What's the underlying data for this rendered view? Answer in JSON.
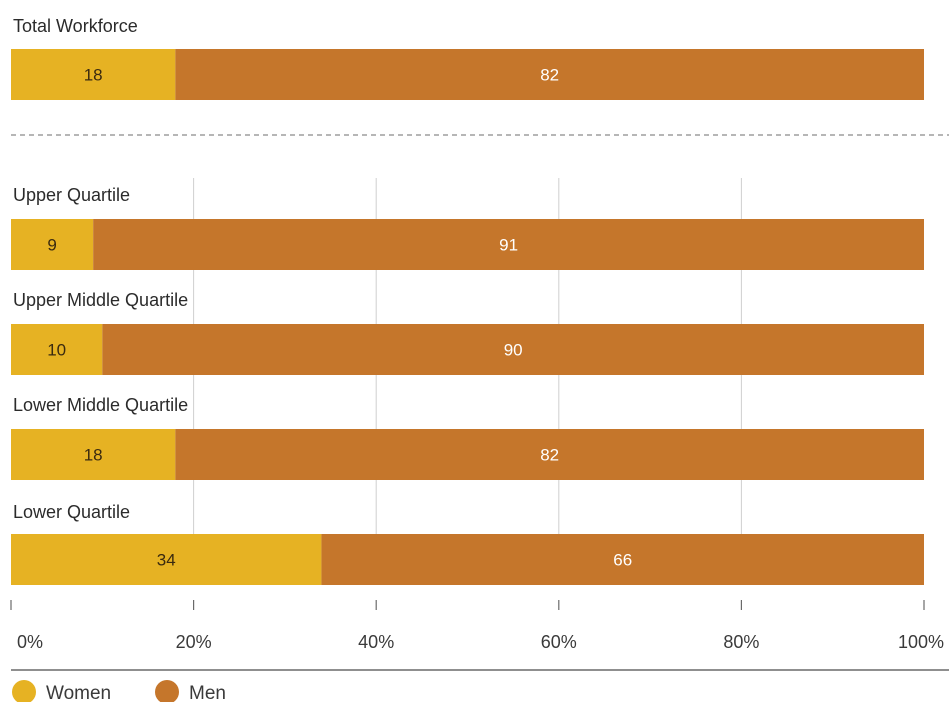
{
  "colors": {
    "women": "#e6b223",
    "men": "#c5762b",
    "grid": "#cfcfcf",
    "divider": "#8a8a8a",
    "axis": "#6a6a6a",
    "women_text": "#3a2a10",
    "men_text": "#ffffff"
  },
  "chart_data": {
    "type": "bar",
    "orientation": "horizontal",
    "stacked": true,
    "categories": [
      "Total Workforce",
      "Upper Quartile",
      "Upper Middle Quartile",
      "Lower Middle Quartile",
      "Lower Quartile"
    ],
    "series": [
      {
        "name": "Women",
        "values": [
          18,
          9,
          10,
          18,
          34
        ]
      },
      {
        "name": "Men",
        "values": [
          82,
          91,
          90,
          82,
          66
        ]
      }
    ],
    "xlim": [
      0,
      100
    ],
    "xticks": [
      "0%",
      "20%",
      "40%",
      "60%",
      "80%",
      "100%"
    ],
    "grid": true,
    "legend": "bottom-left",
    "title": "",
    "xlabel": "",
    "ylabel": ""
  }
}
